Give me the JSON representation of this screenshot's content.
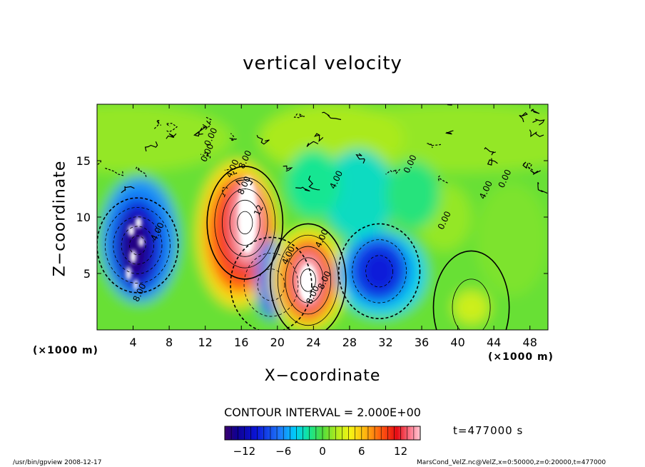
{
  "figure": {
    "title": "vertical velocity",
    "xlabel": "X−coordinate",
    "ylabel": "Z−coordinate",
    "x_unit": "(×1000 m)",
    "contour_interval": "CONTOUR INTERVAL = 2.000E+00",
    "time_label": "t=477000 s",
    "footer_left": "/usr/bin/gpview  2008-12-17",
    "footer_right": "MarsCond_VelZ.nc@VelZ,x=0:50000,z=0:20000,t=477000"
  },
  "chart_data": {
    "type": "heatmap",
    "title": "vertical velocity",
    "xlabel": "X−coordinate",
    "ylabel": "Z−coordinate",
    "x_unit": "(×1000 m)",
    "xlim": [
      0,
      50
    ],
    "ylim": [
      0,
      20
    ],
    "x_ticks": [
      4,
      8,
      12,
      16,
      20,
      24,
      28,
      32,
      36,
      40,
      44,
      48
    ],
    "y_ticks": [
      5,
      10,
      15
    ],
    "colorbar": {
      "min": -15,
      "max": 15,
      "ticks": [
        -12,
        -6,
        0,
        6,
        12
      ],
      "tick_labels": [
        "−12",
        "−6",
        "0",
        "6",
        "12"
      ]
    },
    "contour_labels": [
      {
        "text": "8.00",
        "x": 5.0,
        "z": 3.2
      },
      {
        "text": "4.00",
        "x": 7.0,
        "z": 8.6
      },
      {
        "text": "0.00",
        "x": 12.5,
        "z": 15.6
      },
      {
        "text": "0.00",
        "x": 12.9,
        "z": 17.0
      },
      {
        "text": "4.00",
        "x": 15.3,
        "z": 14.2
      },
      {
        "text": "8.00",
        "x": 16.7,
        "z": 15.0
      },
      {
        "text": "8.00",
        "x": 16.6,
        "z": 12.7
      },
      {
        "text": "12",
        "x": 18.2,
        "z": 10.5
      },
      {
        "text": "4.00",
        "x": 21.5,
        "z": 6.5
      },
      {
        "text": "4.00",
        "x": 25.2,
        "z": 8.0
      },
      {
        "text": "8.00",
        "x": 24.2,
        "z": 3.0
      },
      {
        "text": "8.00",
        "x": 25.5,
        "z": 4.3
      },
      {
        "text": "4.00",
        "x": 26.8,
        "z": 13.2
      },
      {
        "text": "0.00",
        "x": 35.0,
        "z": 14.6
      },
      {
        "text": "0.00",
        "x": 38.8,
        "z": 9.6
      },
      {
        "text": "4.00",
        "x": 43.4,
        "z": 12.3
      },
      {
        "text": "0.00",
        "x": 45.5,
        "z": 13.3
      }
    ],
    "extrema": [
      {
        "sign": "negative",
        "x": 4.5,
        "z": 7.5,
        "approx_value": -14
      },
      {
        "sign": "positive",
        "x": 16.4,
        "z": 9.5,
        "approx_value": 15
      },
      {
        "sign": "negative",
        "x": 19.3,
        "z": 4.0,
        "approx_value": -8
      },
      {
        "sign": "positive",
        "x": 23.4,
        "z": 4.4,
        "approx_value": 15
      },
      {
        "sign": "negative",
        "x": 31.3,
        "z": 5.2,
        "approx_value": -10
      },
      {
        "sign": "positive",
        "x": 41.5,
        "z": 2.0,
        "approx_value": 3
      }
    ]
  }
}
